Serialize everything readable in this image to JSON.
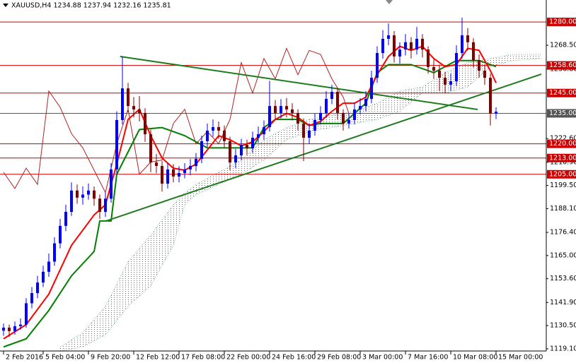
{
  "chart_data": {
    "type": "candlestick",
    "title": "XAUUSD,H4  1234.88 1237.94 1232.16 1235.81",
    "bull_color": "#0000ff",
    "bear_color": "#800000",
    "ylim": [
      1118.0,
      1290.8
    ],
    "yticks": [
      {
        "value": 1119.1,
        "label": "1119.10"
      },
      {
        "value": 1130.5,
        "label": "1130.50"
      },
      {
        "value": 1141.9,
        "label": "1141.90"
      },
      {
        "value": 1153.6,
        "label": "1153.60"
      },
      {
        "value": 1165.0,
        "label": "1165.00"
      },
      {
        "value": 1176.4,
        "label": "1176.40"
      },
      {
        "value": 1188.1,
        "label": "1188.10"
      },
      {
        "value": 1199.5,
        "label": "1199.50"
      },
      {
        "value": 1210.9,
        "label": "1210.90"
      },
      {
        "value": 1222.6,
        "label": "1222.60"
      },
      {
        "value": 1256.8,
        "label": "1256.80"
      },
      {
        "value": 1268.5,
        "label": "1268.50"
      }
    ],
    "categories": [
      "2 Feb 2016",
      null,
      null,
      null,
      null,
      null,
      null,
      "5 Feb 04:00",
      null,
      null,
      null,
      null,
      null,
      null,
      null,
      "9 Feb 20:00",
      null,
      null,
      null,
      null,
      null,
      null,
      null,
      "12 Feb 12:00",
      null,
      null,
      null,
      null,
      null,
      null,
      null,
      "17 Feb 08:00",
      null,
      null,
      null,
      null,
      null,
      null,
      null,
      "22 Feb 00:00",
      null,
      null,
      null,
      null,
      null,
      null,
      null,
      "24 Feb 16:00",
      null,
      null,
      null,
      null,
      null,
      null,
      null,
      "29 Feb 08:00",
      null,
      null,
      null,
      null,
      null,
      null,
      null,
      "3 Mar 00:00",
      null,
      null,
      null,
      null,
      null,
      null,
      null,
      "7 Mar 16:00",
      null,
      null,
      null,
      null,
      null,
      null,
      null,
      "10 Mar 08:00",
      null,
      null,
      null,
      null,
      null,
      null,
      null,
      "15 Mar 00:00"
    ],
    "open": [
      1128.0,
      1129.5,
      1127.8,
      1130.2,
      1131.0,
      1141.5,
      1146.5,
      1151.7,
      1157.0,
      1162.0,
      1171.0,
      1179.6,
      1186.5,
      1197.0,
      1193.5,
      1195.0,
      1197.0,
      1193.0,
      1186.5,
      1193.0,
      1207.4,
      1231.7,
      1247.3,
      1238.6,
      1236.9,
      1235.2,
      1224.7,
      1210.8,
      1209.1,
      1200.4,
      1207.4,
      1203.9,
      1205.6,
      1207.4,
      1209.1,
      1212.6,
      1221.3,
      1226.5,
      1228.2,
      1226.5,
      1221.3,
      1210.8,
      1214.3,
      1219.5,
      1217.8,
      1223.0,
      1224.7,
      1228.2,
      1238.6,
      1235.2,
      1238.6,
      1236.9,
      1235.2,
      1230.0,
      1223.0,
      1226.5,
      1231.7,
      1235.2,
      1242.1,
      1245.6,
      1235.2,
      1230.0,
      1231.7,
      1236.9,
      1238.6,
      1242.1,
      1252.5,
      1264.7,
      1271.7,
      1273.4,
      1263.0,
      1266.4,
      1270.0,
      1266.4,
      1271.7,
      1266.4,
      1257.8,
      1256.0,
      1252.5,
      1249.1,
      1250.8,
      1264.7,
      1273.4,
      1270.0,
      1261.2,
      1256.0,
      1252.5,
      1234.88
    ],
    "high": [
      1131.5,
      1131.0,
      1132.5,
      1134.0,
      1144.0,
      1149.5,
      1155.0,
      1160.0,
      1166.0,
      1174.0,
      1183.0,
      1190.0,
      1201.0,
      1200.0,
      1199.0,
      1200.5,
      1199.0,
      1195.0,
      1196.0,
      1210.5,
      1236.0,
      1263.0,
      1250.0,
      1243.0,
      1243.5,
      1237.5,
      1227.0,
      1215.0,
      1211.5,
      1210.5,
      1210.0,
      1209.0,
      1210.5,
      1212.5,
      1215.5,
      1224.0,
      1230.0,
      1232.0,
      1231.0,
      1229.0,
      1223.5,
      1217.5,
      1222.5,
      1222.0,
      1226.0,
      1228.5,
      1231.5,
      1251.0,
      1241.5,
      1242.0,
      1242.5,
      1240.0,
      1237.0,
      1232.5,
      1230.0,
      1235.0,
      1238.5,
      1246.0,
      1249.0,
      1247.5,
      1237.0,
      1235.0,
      1240.0,
      1242.5,
      1246.0,
      1256.0,
      1268.0,
      1276.0,
      1279.3,
      1275.5,
      1270.0,
      1274.0,
      1272.5,
      1277.5,
      1274.0,
      1268.0,
      1261.5,
      1259.0,
      1255.5,
      1254.5,
      1268.5,
      1282.1,
      1277.0,
      1272.0,
      1264.0,
      1259.0,
      1254.5,
      1237.94
    ],
    "low": [
      1125.5,
      1125.0,
      1126.0,
      1128.5,
      1129.5,
      1139.0,
      1144.0,
      1149.5,
      1154.5,
      1160.0,
      1168.5,
      1177.0,
      1184.5,
      1190.5,
      1190.0,
      1192.5,
      1189.5,
      1183.0,
      1184.0,
      1191.0,
      1205.0,
      1229.5,
      1235.5,
      1233.0,
      1231.0,
      1221.0,
      1206.0,
      1205.5,
      1196.5,
      1198.0,
      1201.0,
      1201.0,
      1203.0,
      1204.5,
      1206.5,
      1210.5,
      1218.5,
      1223.5,
      1222.5,
      1218.0,
      1207.0,
      1208.0,
      1212.0,
      1214.5,
      1215.5,
      1220.5,
      1222.0,
      1226.0,
      1232.0,
      1232.5,
      1233.0,
      1231.5,
      1226.5,
      1211.5,
      1220.0,
      1224.0,
      1229.5,
      1233.0,
      1239.5,
      1232.0,
      1226.5,
      1227.5,
      1229.5,
      1234.5,
      1236.0,
      1240.0,
      1250.0,
      1262.0,
      1268.5,
      1260.0,
      1259.5,
      1263.5,
      1262.0,
      1264.0,
      1262.5,
      1254.5,
      1252.0,
      1246.0,
      1245.0,
      1246.0,
      1248.5,
      1262.0,
      1266.0,
      1257.5,
      1252.5,
      1249.0,
      1229.0,
      1232.16
    ],
    "close": [
      1129.5,
      1127.8,
      1130.2,
      1131.0,
      1141.5,
      1146.5,
      1151.7,
      1157.0,
      1162.0,
      1171.0,
      1179.6,
      1186.5,
      1197.0,
      1193.5,
      1195.0,
      1197.0,
      1193.0,
      1186.5,
      1193.0,
      1207.4,
      1231.7,
      1247.3,
      1238.6,
      1236.9,
      1235.2,
      1224.7,
      1210.8,
      1209.1,
      1200.4,
      1207.4,
      1203.9,
      1205.6,
      1207.4,
      1209.1,
      1212.6,
      1221.3,
      1226.5,
      1228.2,
      1226.5,
      1221.3,
      1210.8,
      1214.3,
      1219.5,
      1217.8,
      1223.0,
      1224.7,
      1228.2,
      1238.6,
      1235.2,
      1238.6,
      1236.9,
      1235.2,
      1230.0,
      1223.0,
      1226.5,
      1231.7,
      1235.2,
      1242.1,
      1245.6,
      1235.2,
      1230.0,
      1231.7,
      1236.9,
      1238.6,
      1242.1,
      1252.5,
      1264.7,
      1271.7,
      1273.4,
      1263.0,
      1266.4,
      1270.0,
      1266.4,
      1271.7,
      1266.4,
      1257.8,
      1256.0,
      1252.5,
      1249.1,
      1250.8,
      1264.7,
      1273.4,
      1270.0,
      1261.2,
      1256.0,
      1252.5,
      1234.9,
      1235.81
    ],
    "cloud": {
      "color": "#2e8b57",
      "x": [
        10,
        14,
        18,
        22,
        26,
        30,
        32,
        34,
        38,
        42,
        46,
        50,
        54,
        58,
        62,
        66,
        70,
        74,
        78,
        82,
        86,
        90,
        95
      ],
      "span_a": [
        1120,
        1127,
        1140,
        1162,
        1175,
        1190,
        1196,
        1200,
        1206,
        1212,
        1222,
        1228,
        1232,
        1234,
        1236,
        1240,
        1246,
        1248,
        1255,
        1260,
        1262,
        1264,
        1264
      ],
      "span_b": [
        1118,
        1120,
        1126,
        1140,
        1150,
        1170,
        1190,
        1195,
        1200,
        1205,
        1212,
        1222,
        1226,
        1228,
        1230,
        1232,
        1236,
        1245,
        1245,
        1248,
        1258,
        1261,
        1262
      ]
    },
    "indicators": [
      {
        "color": "#b22222",
        "width": 1,
        "x": [
          0,
          2,
          4,
          6,
          8,
          10,
          12,
          14,
          16,
          18,
          20,
          22,
          24,
          26,
          28,
          30,
          32,
          34,
          36,
          38,
          40,
          42,
          44,
          46,
          48,
          50,
          52,
          54,
          56,
          58,
          60,
          61
        ],
        "values": [
          1206,
          1198,
          1208,
          1200,
          1246,
          1238,
          1225,
          1218,
          1207,
          1196,
          1220,
          1237,
          1205,
          1211,
          1212,
          1230,
          1237,
          1220,
          1226,
          1220,
          1232,
          1260,
          1245,
          1262,
          1252,
          1267,
          1254,
          1266,
          1264,
          1252,
          1243,
          1235
        ]
      },
      {
        "color": "#008000",
        "width": 2,
        "x": [
          0,
          4,
          8,
          12,
          16,
          17,
          19,
          20,
          24,
          28,
          32,
          36,
          40,
          44,
          46,
          48,
          52,
          54,
          56,
          60,
          62,
          64,
          66,
          68,
          72,
          76,
          78,
          80,
          84,
          87
        ],
        "values": [
          1120,
          1124,
          1138,
          1155,
          1167,
          1182,
          1182,
          1205,
          1227,
          1228,
          1224,
          1218,
          1218,
          1218,
          1228,
          1232,
          1232,
          1229,
          1230,
          1230,
          1235,
          1240,
          1255,
          1259,
          1259,
          1255,
          1258,
          1261,
          1261,
          1258
        ]
      },
      {
        "color": "#ff0000",
        "width": 2,
        "x": [
          0,
          4,
          8,
          12,
          16,
          18,
          20,
          22,
          24,
          26,
          28,
          30,
          32,
          34,
          36,
          38,
          40,
          42,
          44,
          46,
          48,
          50,
          52,
          54,
          56,
          58,
          60,
          62,
          64,
          66,
          68,
          70,
          72,
          74,
          76,
          78,
          80,
          82,
          84,
          86,
          87
        ],
        "values": [
          1124,
          1131,
          1146,
          1170,
          1185,
          1190,
          1210,
          1232,
          1237,
          1224,
          1213,
          1208,
          1207,
          1210,
          1217,
          1224,
          1222,
          1219,
          1221,
          1226,
          1232,
          1235,
          1233,
          1229,
          1231,
          1236,
          1240,
          1240,
          1243,
          1254,
          1263,
          1268,
          1266,
          1268,
          1262,
          1258,
          1259,
          1267,
          1266,
          1256,
          1250
        ]
      }
    ],
    "trendlines": [
      {
        "color": "#1e7b1e",
        "x": [
          20.6,
          83.75
        ],
        "values": [
          1262.97,
          1236.9
        ]
      },
      {
        "color": "#1e7b1e",
        "x": [
          18.1,
          95
        ],
        "values": [
          1182.0,
          1254.3
        ]
      }
    ],
    "levels": [
      {
        "value": 1280,
        "label": "1280.00",
        "color": "#cc0000"
      },
      {
        "value": 1258.6,
        "label": "1258.60",
        "color": "#cc0000"
      },
      {
        "value": 1245,
        "label": "1245.00",
        "color": "#cc0000"
      },
      {
        "value": 1235,
        "label": "1235.00",
        "color": "#555555"
      },
      {
        "value": 1220,
        "label": "1220.00",
        "color": "#cc0000"
      },
      {
        "value": 1213,
        "label": "1213.00",
        "color": "#cc0000"
      },
      {
        "value": 1205,
        "label": "1205.00",
        "color": "#cc0000"
      }
    ]
  }
}
